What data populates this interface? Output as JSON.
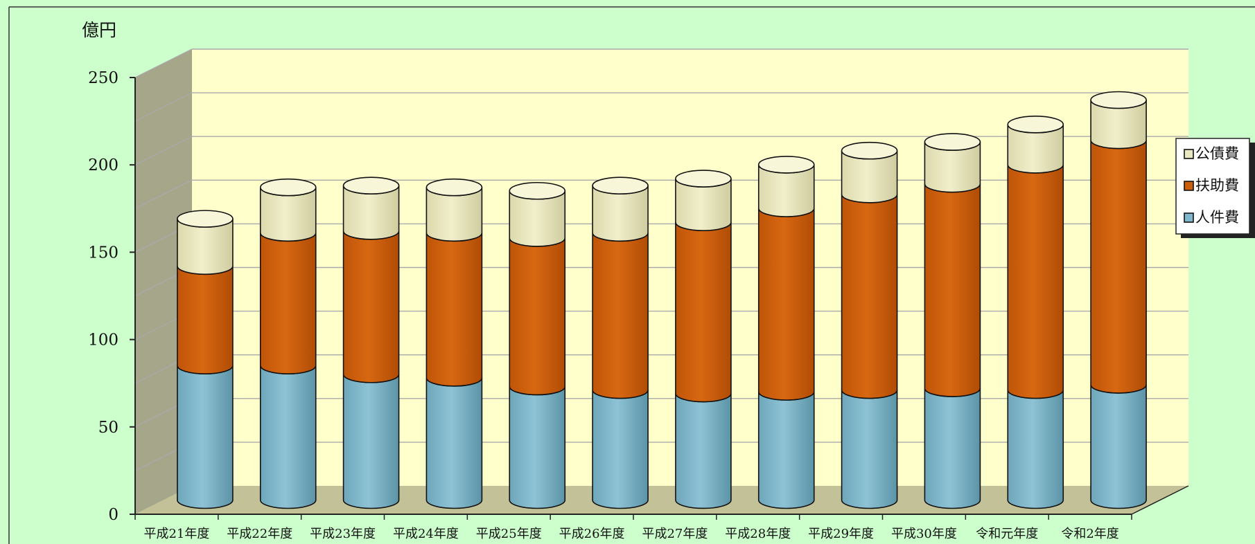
{
  "colors": {
    "background": "#ccffcc",
    "plot_back_wall": "#ffffcc",
    "plot_side_wall": "#a6a78a",
    "plot_floor": "#c3c198",
    "gridline": "#a9a9a9"
  },
  "chart_data": {
    "type": "bar",
    "stacked": true,
    "style": "3d-cylinder",
    "unit_label": "億円",
    "categories": [
      "平成21年度",
      "平成22年度",
      "平成23年度",
      "平成24年度",
      "平成25年度",
      "平成26年度",
      "平成27年度",
      "平成28年度",
      "平成29年度",
      "平成30年度",
      "令和元年度",
      "令和2年度"
    ],
    "series": [
      {
        "name": "人件費",
        "color": "#7fb8cc",
        "values": [
          77,
          77,
          72,
          70,
          65,
          63,
          61,
          62,
          63,
          64,
          63,
          66
        ]
      },
      {
        "name": "扶助費",
        "color": "#cc5f0c",
        "values": [
          57,
          76,
          82,
          83,
          85,
          90,
          98,
          105,
          112,
          117,
          129,
          140
        ]
      },
      {
        "name": "公債費",
        "color": "#eae8c0",
        "values": [
          27,
          26,
          26,
          26,
          27,
          27,
          25,
          25,
          25,
          24,
          23,
          23
        ]
      }
    ],
    "ylim": [
      0,
      250
    ],
    "yticks": [
      0,
      50,
      100,
      150,
      200,
      250
    ],
    "grid": true,
    "legend_position": "right"
  }
}
